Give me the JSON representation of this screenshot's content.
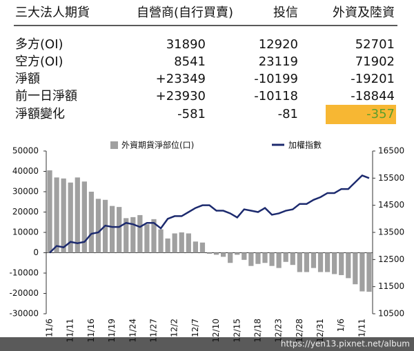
{
  "table": {
    "header": [
      "三大法人期貨",
      "自營商(自行買賣)",
      "投信",
      "外資及陸資"
    ],
    "rows": [
      [
        "多方(OI)",
        "31890",
        "12920",
        "52701"
      ],
      [
        "空方(OI)",
        "8541",
        "23119",
        "71902"
      ],
      [
        "淨額",
        "+23349",
        "-10199",
        "-19201"
      ],
      [
        "前一日淨額",
        "+23930",
        "-10118",
        "-18844"
      ],
      [
        "淨額變化",
        "-581",
        "-81",
        "-357"
      ]
    ],
    "highlight": {
      "row": 4,
      "col": 3,
      "background": "#f7b733",
      "color": "#5b9e2d"
    }
  },
  "chart_data": {
    "type": "bar-line",
    "categories": [
      "11/6",
      null,
      null,
      "11/11",
      null,
      null,
      "11/16",
      null,
      null,
      "11/19",
      null,
      null,
      "11/24",
      null,
      null,
      "11/27",
      null,
      null,
      "12/2",
      null,
      null,
      "12/7",
      null,
      null,
      "12/10",
      null,
      null,
      "12/15",
      null,
      null,
      "12/18",
      null,
      null,
      "12/23",
      null,
      null,
      "12/28",
      null,
      null,
      "12/31",
      null,
      null,
      "1/6",
      null,
      null,
      "1/11",
      null
    ],
    "series": [
      {
        "name": "外資期貨淨部位(口)",
        "type": "bar",
        "axis": "y",
        "color": "#a0a0a0",
        "values": [
          40500,
          37000,
          36500,
          34500,
          37000,
          35000,
          30000,
          26500,
          26000,
          23000,
          22500,
          17000,
          17500,
          18500,
          14000,
          16500,
          11500,
          7000,
          9500,
          10000,
          9500,
          5500,
          5000,
          -500,
          -1000,
          -2000,
          -5000,
          -1000,
          -3500,
          -6500,
          -5500,
          -5000,
          -6500,
          -7500,
          -4500,
          -6000,
          -9500,
          -9500,
          -7500,
          -9500,
          -9500,
          -10500,
          -11000,
          -12500,
          -15500,
          -19000,
          -19201
        ]
      },
      {
        "name": "加權指數",
        "type": "line",
        "axis": "y2",
        "color": "#1c2a6e",
        "values": [
          12750,
          13000,
          12950,
          13150,
          13100,
          13150,
          13450,
          13500,
          13750,
          13700,
          13700,
          13850,
          13800,
          13700,
          13850,
          13850,
          13650,
          14000,
          14100,
          14100,
          14250,
          14400,
          14500,
          14500,
          14300,
          14300,
          14200,
          14050,
          14350,
          14300,
          14250,
          14400,
          14150,
          14200,
          14300,
          14350,
          14550,
          14550,
          14700,
          14800,
          14950,
          14950,
          15100,
          15100,
          15350,
          15600,
          15500
        ]
      }
    ],
    "ylim": [
      -30000,
      50000
    ],
    "yticks": [
      50000,
      40000,
      30000,
      20000,
      10000,
      0,
      -10000,
      -20000,
      -30000
    ],
    "y2lim": [
      10500,
      16500
    ],
    "y2ticks": [
      16500,
      15500,
      14500,
      13500,
      12500,
      11500,
      10500
    ],
    "grid": false
  },
  "watermark": "https://yen13.pixnet.net/album"
}
